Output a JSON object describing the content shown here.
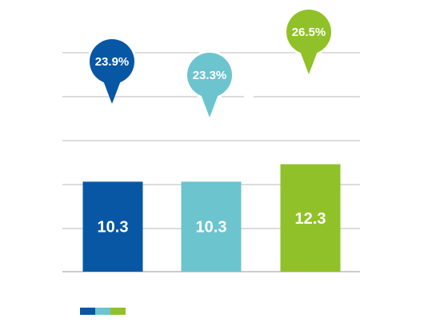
{
  "chart_data": {
    "type": "bar",
    "categories": [
      "",
      "",
      ""
    ],
    "series": [
      {
        "values": [
          10.3,
          10.3,
          12.3
        ]
      }
    ],
    "value_labels": [
      "10.3",
      "10.3",
      "12.3"
    ],
    "percent_labels": [
      "23.9%",
      "23.3%",
      "26.5%"
    ],
    "bar_colors": [
      "#0757a4",
      "#6cc4ce",
      "#91c128"
    ],
    "grid": true,
    "ylim": [
      0,
      30
    ],
    "title": "",
    "xlabel": "",
    "ylabel": ""
  },
  "legend": {
    "swatch_colors": [
      "#0757a4",
      "#6cc4ce",
      "#91c128"
    ]
  }
}
